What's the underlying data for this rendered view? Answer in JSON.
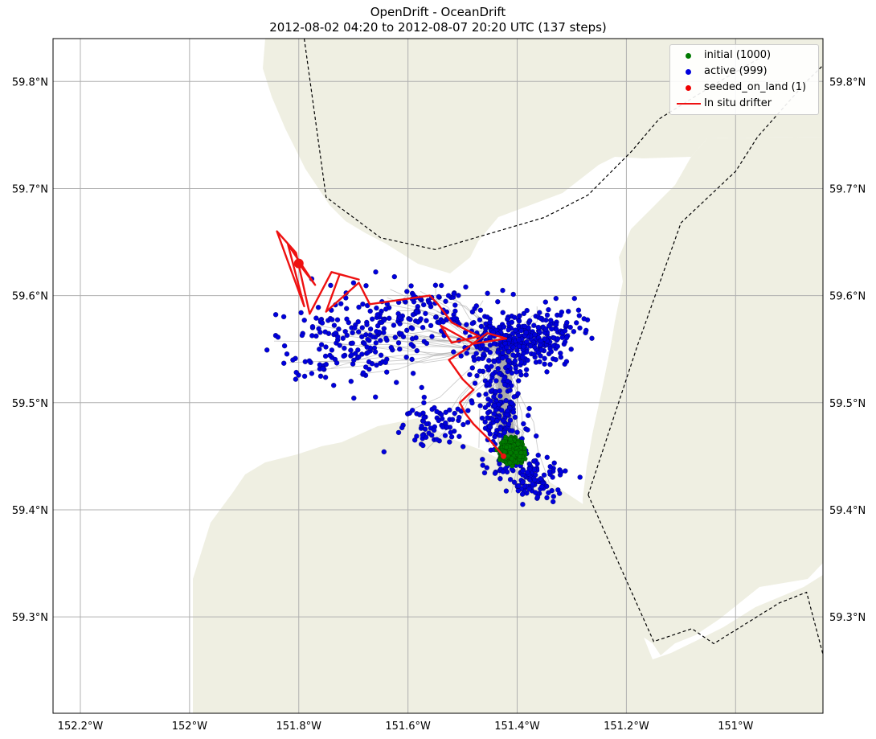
{
  "title": {
    "line1": "OpenDrift - OceanDrift",
    "line2": "2012-08-02 04:20 to 2012-08-07 20:20 UTC (137 steps)"
  },
  "axes": {
    "lon_range": [
      -152.25,
      -150.84
    ],
    "lat_range": [
      59.21,
      59.84
    ],
    "lon_ticks": [
      -152.2,
      -152.0,
      -151.8,
      -151.6,
      -151.4,
      -151.2,
      -151.0
    ],
    "lon_tick_labels": [
      "152.2°W",
      "152°W",
      "151.8°W",
      "151.6°W",
      "151.4°W",
      "151.2°W",
      "151°W"
    ],
    "lat_ticks": [
      59.3,
      59.4,
      59.5,
      59.6,
      59.7,
      59.8
    ],
    "lat_tick_labels": [
      "59.3°N",
      "59.4°N",
      "59.5°N",
      "59.6°N",
      "59.7°N",
      "59.8°N"
    ],
    "grid": true
  },
  "colors": {
    "land": "#efefe2",
    "ocean": "#ffffff",
    "grid": "#b0b0b0",
    "trajectory": "#aaaaaa",
    "initial": "#007a00",
    "active": "#0000dd",
    "seeded_on_land": "#ee0000",
    "drifter": "#ee1111",
    "boundary": "#000000"
  },
  "legend": {
    "position": "top-right",
    "items": [
      {
        "label": "initial (1000)",
        "symbol": "dot",
        "color_key": "initial"
      },
      {
        "label": "active (999)",
        "symbol": "dot",
        "color_key": "active"
      },
      {
        "label": "seeded_on_land (1)",
        "symbol": "dot",
        "color_key": "seeded_on_land"
      },
      {
        "label": "In situ drifter",
        "symbol": "line",
        "color_key": "drifter"
      }
    ]
  },
  "counts": {
    "initial": 1000,
    "active": 999,
    "seeded_on_land": 1
  },
  "seed_center": {
    "lon": -151.41,
    "lat": 59.455
  },
  "drifter_track": [
    [
      -151.425,
      59.45
    ],
    [
      -151.45,
      59.465
    ],
    [
      -151.48,
      59.48
    ],
    [
      -151.495,
      59.49
    ],
    [
      -151.505,
      59.5
    ],
    [
      -151.48,
      59.512
    ],
    [
      -151.5,
      59.522
    ],
    [
      -151.525,
      59.54
    ],
    [
      -151.5,
      59.548
    ],
    [
      -151.455,
      59.565
    ],
    [
      -151.42,
      59.56
    ],
    [
      -151.48,
      59.555
    ],
    [
      -151.54,
      59.572
    ],
    [
      -151.52,
      59.556
    ],
    [
      -151.47,
      59.562
    ],
    [
      -151.52,
      59.575
    ],
    [
      -151.545,
      59.592
    ],
    [
      -151.56,
      59.6
    ],
    [
      -151.67,
      59.592
    ],
    [
      -151.69,
      59.612
    ],
    [
      -151.75,
      59.585
    ],
    [
      -151.725,
      59.62
    ],
    [
      -151.69,
      59.615
    ],
    [
      -151.74,
      59.622
    ],
    [
      -151.78,
      59.583
    ],
    [
      -151.805,
      59.64
    ],
    [
      -151.84,
      59.66
    ],
    [
      -151.79,
      59.59
    ],
    [
      -151.82,
      59.648
    ],
    [
      -151.77,
      59.61
    ],
    [
      -151.8,
      59.63
    ]
  ],
  "boundary_lines": [
    [
      [
        -151.79,
        59.84
      ],
      [
        -151.75,
        59.692
      ],
      [
        -151.65,
        59.654
      ],
      [
        -151.55,
        59.643
      ],
      [
        -151.35,
        59.673
      ],
      [
        -151.27,
        59.694
      ],
      [
        -151.19,
        59.735
      ],
      [
        -151.14,
        59.765
      ],
      [
        -151.03,
        59.8
      ],
      [
        -150.945,
        59.825
      ]
    ],
    [
      [
        -151.27,
        59.414
      ],
      [
        -151.18,
        59.553
      ],
      [
        -151.1,
        59.668
      ],
      [
        -151.0,
        59.716
      ],
      [
        -150.96,
        59.748
      ],
      [
        -150.87,
        59.8
      ],
      [
        -150.84,
        59.815
      ]
    ],
    [
      [
        -151.27,
        59.414
      ],
      [
        -151.15,
        59.277
      ],
      [
        -151.08,
        59.289
      ],
      [
        -151.04,
        59.275
      ],
      [
        -150.92,
        59.313
      ],
      [
        -150.87,
        59.323
      ],
      [
        -150.84,
        59.265
      ]
    ]
  ]
}
